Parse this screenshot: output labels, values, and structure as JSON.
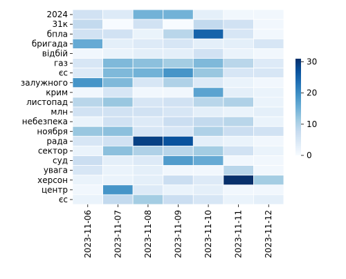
{
  "chart_data": {
    "type": "heatmap",
    "x_categories": [
      "2023-11-06",
      "2023-11-07",
      "2023-11-08",
      "2023-11-09",
      "2023-11-10",
      "2023-11-11",
      "2023-11-12"
    ],
    "y_categories": [
      "2024",
      "31к",
      "бпла",
      "бригада",
      "відбій",
      "газ",
      "єс",
      "залужного",
      "крим",
      "листопад",
      "млн",
      "небезпека",
      "ноября",
      "рада",
      "сектор",
      "суд",
      "увага",
      "херсон",
      "центр",
      "єс"
    ],
    "values": [
      [
        6,
        4,
        15,
        15,
        3,
        1,
        1
      ],
      [
        8,
        0,
        6,
        0,
        8,
        6,
        1
      ],
      [
        6,
        6,
        2,
        9,
        25,
        5,
        1
      ],
      [
        16,
        3,
        4,
        5,
        3,
        3,
        5
      ],
      [
        1,
        2,
        3,
        3,
        6,
        2,
        1
      ],
      [
        5,
        14,
        13,
        11,
        14,
        9,
        4
      ],
      [
        4,
        14,
        15,
        19,
        12,
        5,
        5
      ],
      [
        19,
        14,
        5,
        10,
        4,
        2,
        1
      ],
      [
        1,
        5,
        1,
        1,
        17,
        3,
        2
      ],
      [
        9,
        12,
        5,
        6,
        9,
        10,
        2
      ],
      [
        6,
        6,
        6,
        5,
        3,
        2,
        3
      ],
      [
        2,
        6,
        4,
        7,
        8,
        9,
        2
      ],
      [
        12,
        13,
        5,
        5,
        10,
        7,
        6
      ],
      [
        5,
        6,
        29,
        27,
        3,
        2,
        1
      ],
      [
        2,
        13,
        10,
        9,
        11,
        6,
        2
      ],
      [
        7,
        3,
        4,
        18,
        16,
        1,
        1
      ],
      [
        5,
        2,
        3,
        1,
        1,
        9,
        1
      ],
      [
        2,
        2,
        3,
        7,
        4,
        31,
        11
      ],
      [
        1,
        19,
        4,
        2,
        3,
        1,
        1
      ],
      [
        2,
        8,
        11,
        7,
        5,
        2,
        3
      ]
    ],
    "colorbar": {
      "min": 0,
      "max": 31,
      "ticks": [
        0,
        10,
        20,
        30
      ]
    },
    "colormap": [
      "#f7fbff",
      "#deebf7",
      "#c6dbef",
      "#9ecae1",
      "#6baed6",
      "#4292c6",
      "#2171b5",
      "#08519c",
      "#08306b"
    ],
    "cell_border_color": "#ffffff"
  }
}
